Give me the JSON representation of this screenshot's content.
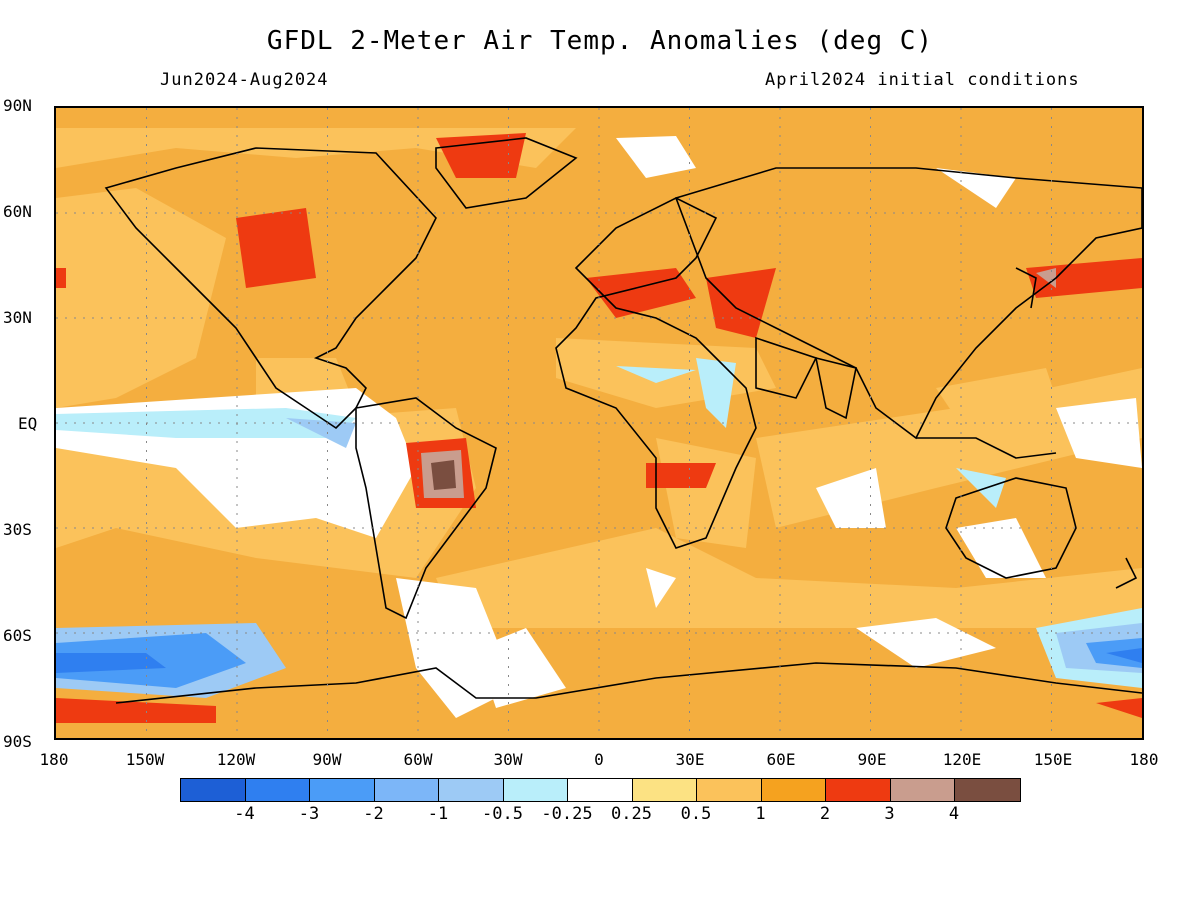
{
  "title": "GFDL 2-Meter Air Temp. Anomalies (deg C)",
  "subtitle_left": "Jun2024-Aug2024",
  "subtitle_right": "April2024 initial conditions",
  "lat_labels": [
    "90N",
    "60N",
    "30N",
    "EQ",
    "30S",
    "60S",
    "90S"
  ],
  "lon_labels": [
    "180",
    "150W",
    "120W",
    "90W",
    "60W",
    "30W",
    "0",
    "30E",
    "60E",
    "90E",
    "120E",
    "150E",
    "180"
  ],
  "colorbar": {
    "colors": [
      "#1d5fd6",
      "#2f7ff0",
      "#4b9cf7",
      "#7cb6f8",
      "#9dcaf5",
      "#b9eefa",
      "#ffffff",
      "#fce283",
      "#fbc25b",
      "#f5a21f",
      "#ee3a11",
      "#c99d8e",
      "#7a4e40"
    ],
    "labels": [
      "-4",
      "-3",
      "-2",
      "-1",
      "-0.5",
      "-0.25",
      "0.25",
      "0.5",
      "1",
      "2",
      "3",
      "4"
    ]
  }
}
